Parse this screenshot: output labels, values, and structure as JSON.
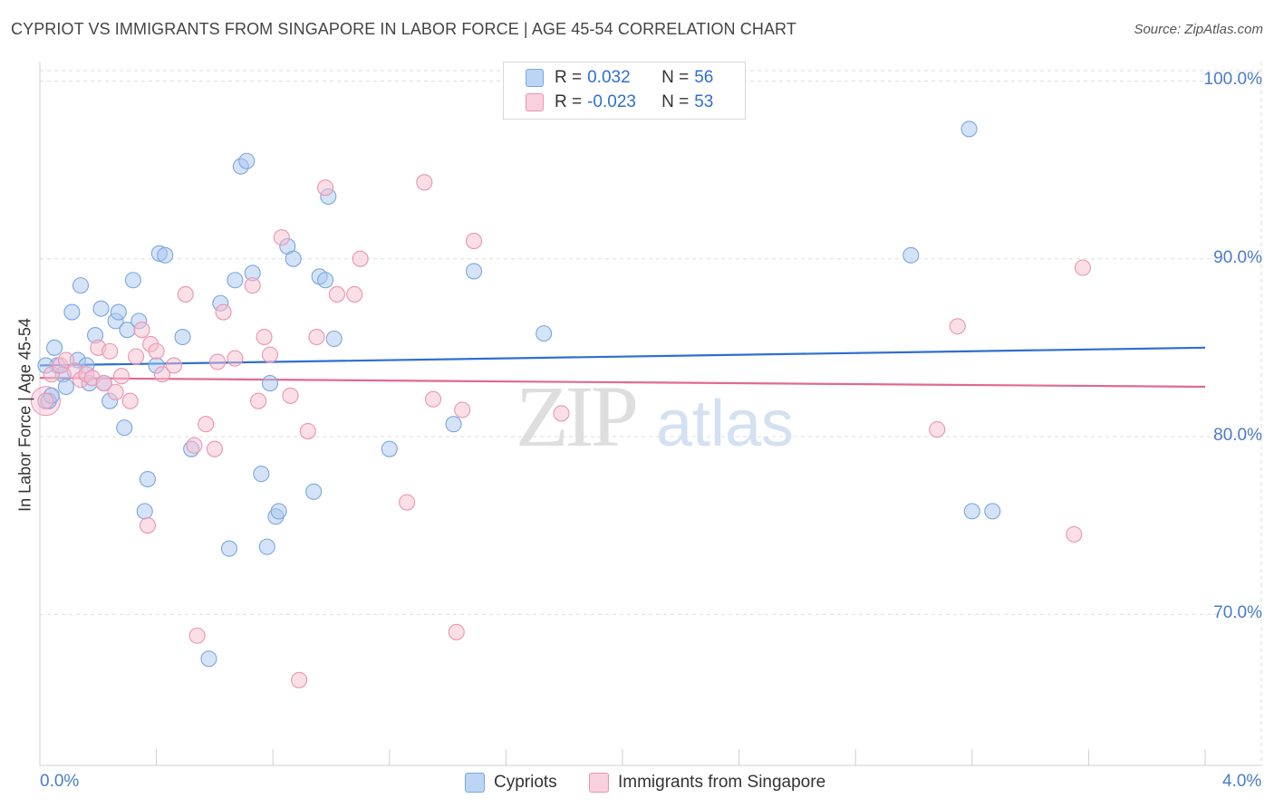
{
  "header": {
    "title": "CYPRIOT VS IMMIGRANTS FROM SINGAPORE IN LABOR FORCE | AGE 45-54 CORRELATION CHART",
    "source": "Source: ZipAtlas.com"
  },
  "watermark": {
    "zip": "ZIP",
    "atlas": "atlas"
  },
  "legend": {
    "series1": {
      "r_label": "R =",
      "r_value": "0.032",
      "n_label": "N =",
      "n_value": "56"
    },
    "series2": {
      "r_label": "R =",
      "r_value": "-0.023",
      "n_label": "N =",
      "n_value": "53"
    }
  },
  "bottom_legend": {
    "series1": "Cypriots",
    "series2": "Immigrants from Singapore"
  },
  "colors": {
    "blue_fill": "#a9c8f0",
    "blue_stroke": "#7aa6e0",
    "blue_line": "#2f6fd0",
    "pink_fill": "#f6bfd0",
    "pink_stroke": "#ec94b2",
    "pink_line": "#e06a91",
    "label_blue": "#4a7cc9",
    "grid": "#dddddd"
  },
  "chart_data": {
    "type": "scatter",
    "title": "CYPRIOT VS IMMIGRANTS FROM SINGAPORE IN LABOR FORCE | AGE 45-54 CORRELATION CHART",
    "xlabel": "",
    "ylabel": "In Labor Force | Age 45-54",
    "xlim": [
      0.0,
      4.0
    ],
    "ylim": [
      61.5,
      101.5
    ],
    "x_tick_labels": [
      "0.0%",
      "4.0%"
    ],
    "y_ticks": [
      70,
      80,
      90,
      100
    ],
    "y_tick_labels": [
      "70.0%",
      "80.0%",
      "90.0%",
      "100.0%"
    ],
    "grid": true,
    "legend_position": "top-center",
    "series": [
      {
        "name": "Cypriots",
        "r": 0.032,
        "n": 56,
        "trend": {
          "x": [
            0.0,
            4.0
          ],
          "y": [
            84.0,
            85.0
          ]
        },
        "points": [
          [
            0.03,
            82.0
          ],
          [
            0.05,
            85.0
          ],
          [
            0.06,
            84.0
          ],
          [
            0.08,
            83.5
          ],
          [
            0.09,
            82.8
          ],
          [
            0.11,
            87.0
          ],
          [
            0.13,
            84.3
          ],
          [
            0.14,
            88.5
          ],
          [
            0.16,
            84.0
          ],
          [
            0.17,
            83.0
          ],
          [
            0.19,
            85.7
          ],
          [
            0.21,
            87.2
          ],
          [
            0.22,
            83.0
          ],
          [
            0.24,
            82.0
          ],
          [
            0.26,
            86.5
          ],
          [
            0.27,
            87.0
          ],
          [
            0.29,
            80.5
          ],
          [
            0.3,
            86.0
          ],
          [
            0.32,
            88.8
          ],
          [
            0.34,
            86.5
          ],
          [
            0.36,
            75.8
          ],
          [
            0.37,
            77.6
          ],
          [
            0.4,
            84.0
          ],
          [
            0.41,
            90.3
          ],
          [
            0.43,
            90.2
          ],
          [
            0.49,
            85.6
          ],
          [
            0.52,
            79.3
          ],
          [
            0.58,
            67.5
          ],
          [
            0.62,
            87.5
          ],
          [
            0.65,
            73.7
          ],
          [
            0.67,
            88.8
          ],
          [
            0.69,
            95.2
          ],
          [
            0.71,
            95.5
          ],
          [
            0.73,
            89.2
          ],
          [
            0.76,
            77.9
          ],
          [
            0.78,
            73.8
          ],
          [
            0.79,
            83.0
          ],
          [
            0.81,
            75.5
          ],
          [
            0.82,
            75.8
          ],
          [
            0.85,
            90.7
          ],
          [
            0.87,
            90.0
          ],
          [
            0.94,
            76.9
          ],
          [
            0.96,
            89.0
          ],
          [
            0.98,
            88.8
          ],
          [
            0.99,
            93.5
          ],
          [
            1.01,
            85.5
          ],
          [
            1.2,
            79.3
          ],
          [
            1.42,
            80.7
          ],
          [
            1.49,
            89.3
          ],
          [
            1.73,
            85.8
          ],
          [
            2.99,
            90.2
          ],
          [
            3.19,
            97.3
          ],
          [
            3.2,
            75.8
          ],
          [
            3.27,
            75.8
          ],
          [
            0.02,
            84.0
          ],
          [
            0.04,
            82.3
          ]
        ]
      },
      {
        "name": "Immigrants from Singapore",
        "r": -0.023,
        "n": 53,
        "trend": {
          "x": [
            0.0,
            4.0
          ],
          "y": [
            83.3,
            82.8
          ]
        },
        "points": [
          [
            0.02,
            82.0
          ],
          [
            0.04,
            83.5
          ],
          [
            0.07,
            84.0
          ],
          [
            0.09,
            84.3
          ],
          [
            0.12,
            83.7
          ],
          [
            0.14,
            83.2
          ],
          [
            0.16,
            83.5
          ],
          [
            0.18,
            83.3
          ],
          [
            0.2,
            85.0
          ],
          [
            0.22,
            83.0
          ],
          [
            0.24,
            84.8
          ],
          [
            0.26,
            82.5
          ],
          [
            0.28,
            83.4
          ],
          [
            0.31,
            82.0
          ],
          [
            0.33,
            84.5
          ],
          [
            0.35,
            86.0
          ],
          [
            0.37,
            75.0
          ],
          [
            0.38,
            85.2
          ],
          [
            0.4,
            84.8
          ],
          [
            0.42,
            83.5
          ],
          [
            0.46,
            84.0
          ],
          [
            0.5,
            88.0
          ],
          [
            0.53,
            79.5
          ],
          [
            0.54,
            68.8
          ],
          [
            0.57,
            80.7
          ],
          [
            0.6,
            79.3
          ],
          [
            0.61,
            84.2
          ],
          [
            0.63,
            87.0
          ],
          [
            0.67,
            84.4
          ],
          [
            0.73,
            88.5
          ],
          [
            0.75,
            82.0
          ],
          [
            0.77,
            85.6
          ],
          [
            0.79,
            84.6
          ],
          [
            0.83,
            91.2
          ],
          [
            0.86,
            82.3
          ],
          [
            0.89,
            66.3
          ],
          [
            0.92,
            80.3
          ],
          [
            0.95,
            85.6
          ],
          [
            0.98,
            94.0
          ],
          [
            1.02,
            88.0
          ],
          [
            1.08,
            88.0
          ],
          [
            1.1,
            90.0
          ],
          [
            1.26,
            76.3
          ],
          [
            1.32,
            94.3
          ],
          [
            1.35,
            82.1
          ],
          [
            1.43,
            69.0
          ],
          [
            1.45,
            81.5
          ],
          [
            1.49,
            91.0
          ],
          [
            1.79,
            81.3
          ],
          [
            3.08,
            80.4
          ],
          [
            3.15,
            86.2
          ],
          [
            3.55,
            74.5
          ],
          [
            3.58,
            89.5
          ]
        ]
      }
    ]
  }
}
